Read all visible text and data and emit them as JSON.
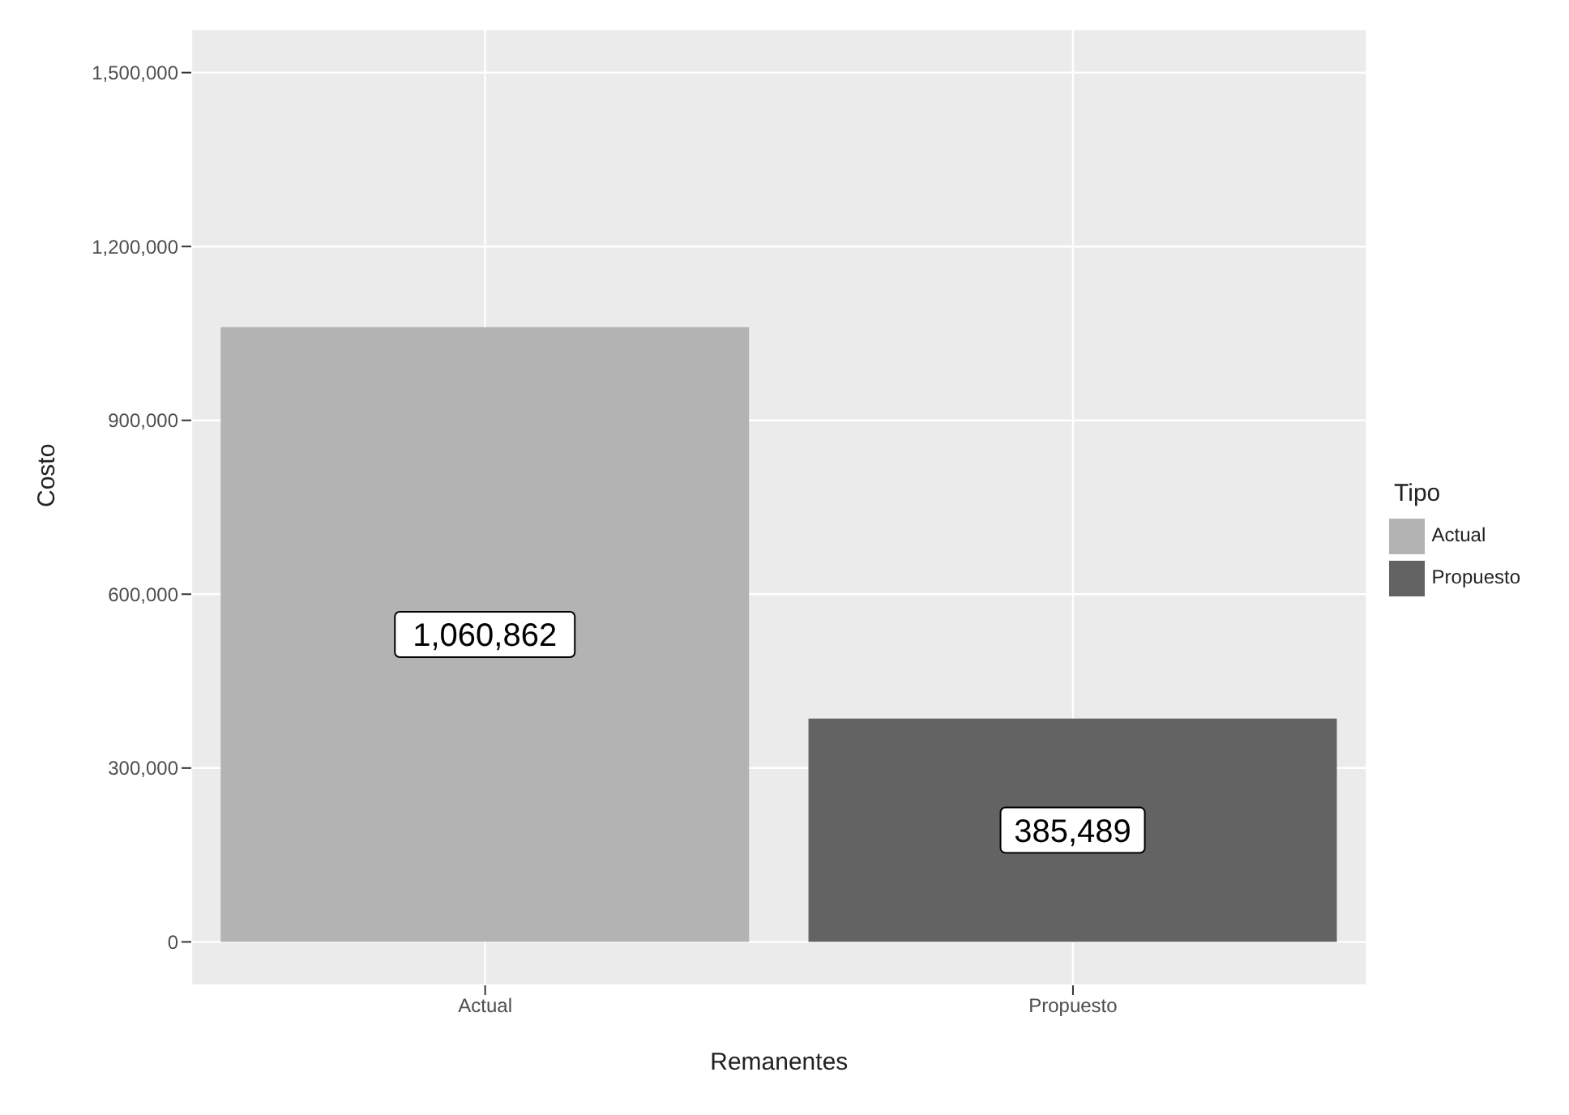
{
  "chart_data": {
    "type": "bar",
    "xlabel": "Remanentes",
    "ylabel": "Costo",
    "legend_title": "Tipo",
    "categories": [
      "Actual",
      "Propuesto"
    ],
    "series": [
      {
        "name": "Actual",
        "color": "#b3b3b3",
        "values": [
          1060862,
          null
        ],
        "value_labels": [
          "1,060,862",
          null
        ]
      },
      {
        "name": "Propuesto",
        "color": "#636363",
        "values": [
          null,
          385489
        ],
        "value_labels": [
          null,
          "385,489"
        ]
      }
    ],
    "stacked": true,
    "ylim": [
      -75000,
      1575000
    ],
    "yticks": [
      {
        "value": 0,
        "label": "0"
      },
      {
        "value": 300000,
        "label": "300,000"
      },
      {
        "value": 600000,
        "label": "600,000"
      },
      {
        "value": 900000,
        "label": "900,000"
      },
      {
        "value": 1200000,
        "label": "1,200,000"
      },
      {
        "value": 1500000,
        "label": "1,500,000"
      }
    ],
    "grid": true,
    "legend": "right"
  }
}
